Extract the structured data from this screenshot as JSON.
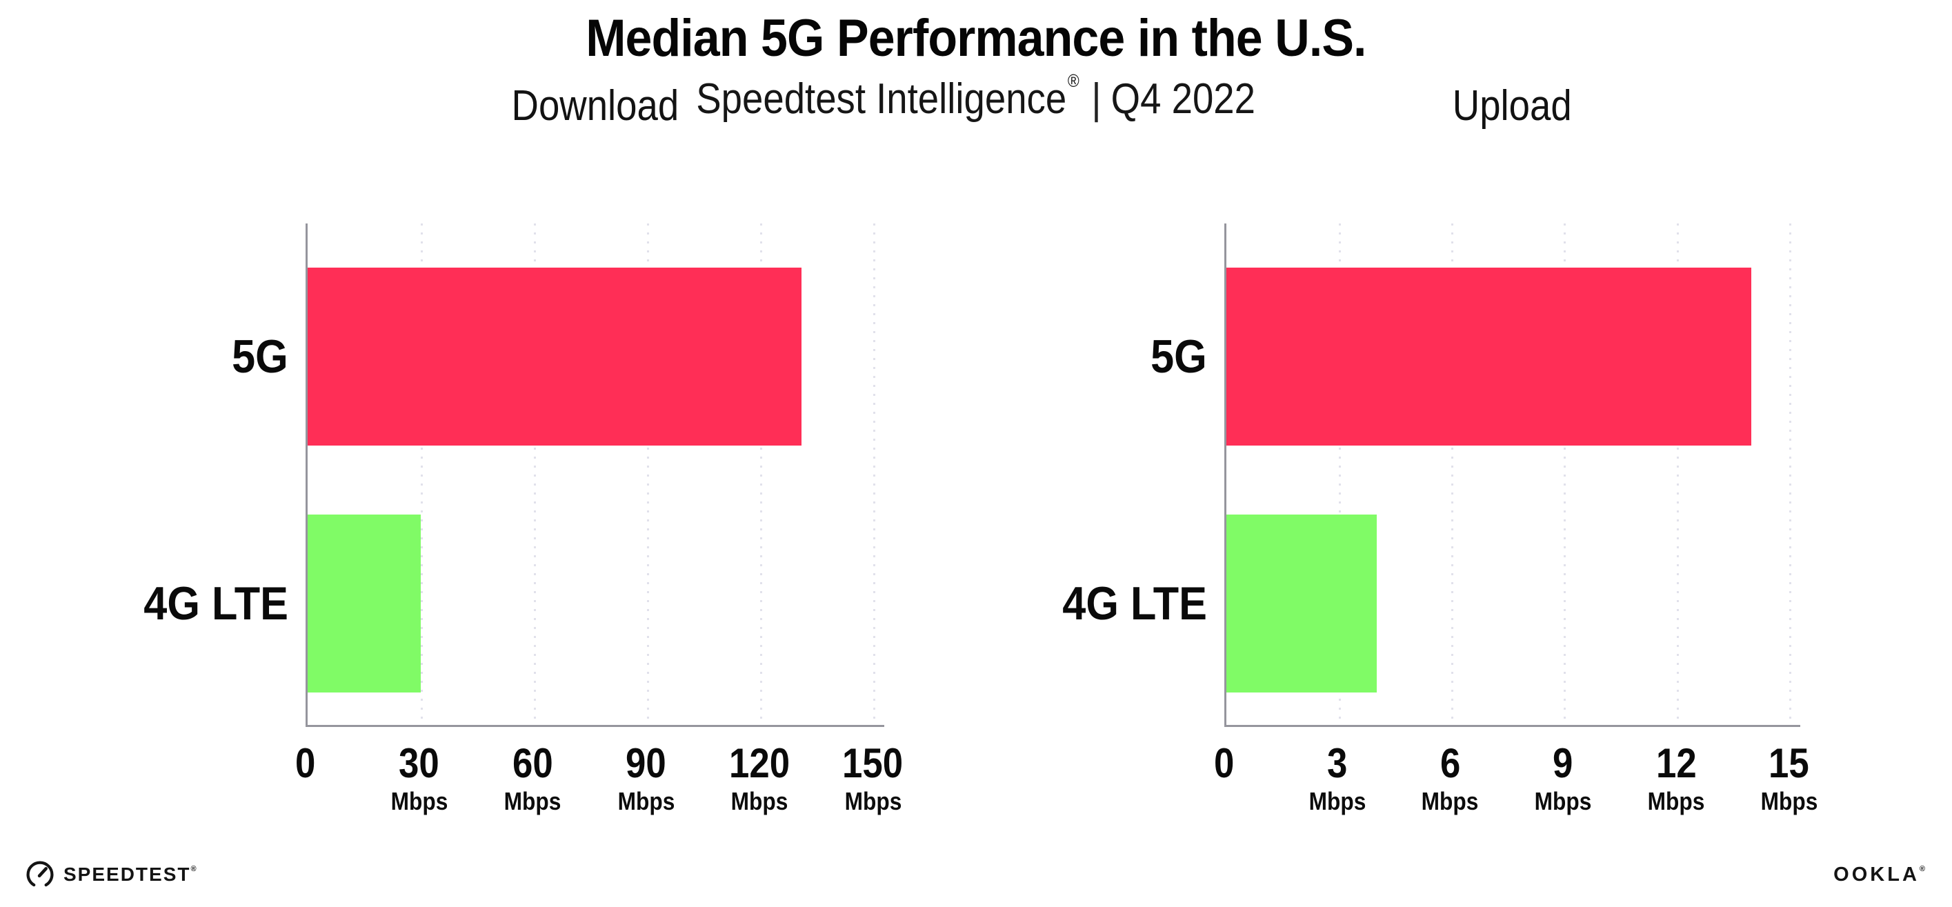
{
  "header": {
    "title": "Median 5G Performance in the U.S.",
    "subtitle_brand": "Speedtest Intelligence",
    "subtitle_reg": "®",
    "subtitle_sep": "|",
    "subtitle_period": "Q4 2022"
  },
  "colors": {
    "bar_5g": "#FF2E56",
    "bar_4g_lte": "#80FB66",
    "axis": "#95959D",
    "gridline_dots": "#E1E1EB",
    "text": "#0A0A0A"
  },
  "chart_data": [
    {
      "type": "bar",
      "orientation": "horizontal",
      "title": "Download",
      "categories": [
        "5G",
        "4G LTE"
      ],
      "values": [
        131,
        30
      ],
      "unit": "Mbps",
      "xticks": [
        0,
        30,
        60,
        90,
        120,
        150
      ],
      "xlim": [
        0,
        153
      ],
      "grid": "vertical-dotted",
      "legend": "none",
      "bar_colors": [
        "#FF2E56",
        "#80FB66"
      ]
    },
    {
      "type": "bar",
      "orientation": "horizontal",
      "title": "Upload",
      "categories": [
        "5G",
        "4G LTE"
      ],
      "values": [
        14,
        4
      ],
      "unit": "Mbps",
      "xticks": [
        0,
        3,
        6,
        9,
        12,
        15
      ],
      "xlim": [
        0,
        15.3
      ],
      "grid": "vertical-dotted",
      "legend": "none",
      "bar_colors": [
        "#FF2E56",
        "#80FB66"
      ]
    }
  ],
  "footer": {
    "speedtest_label": "SPEEDTEST",
    "speedtest_mark": "®",
    "ookla_label": "OOKLA",
    "ookla_mark": "®"
  }
}
